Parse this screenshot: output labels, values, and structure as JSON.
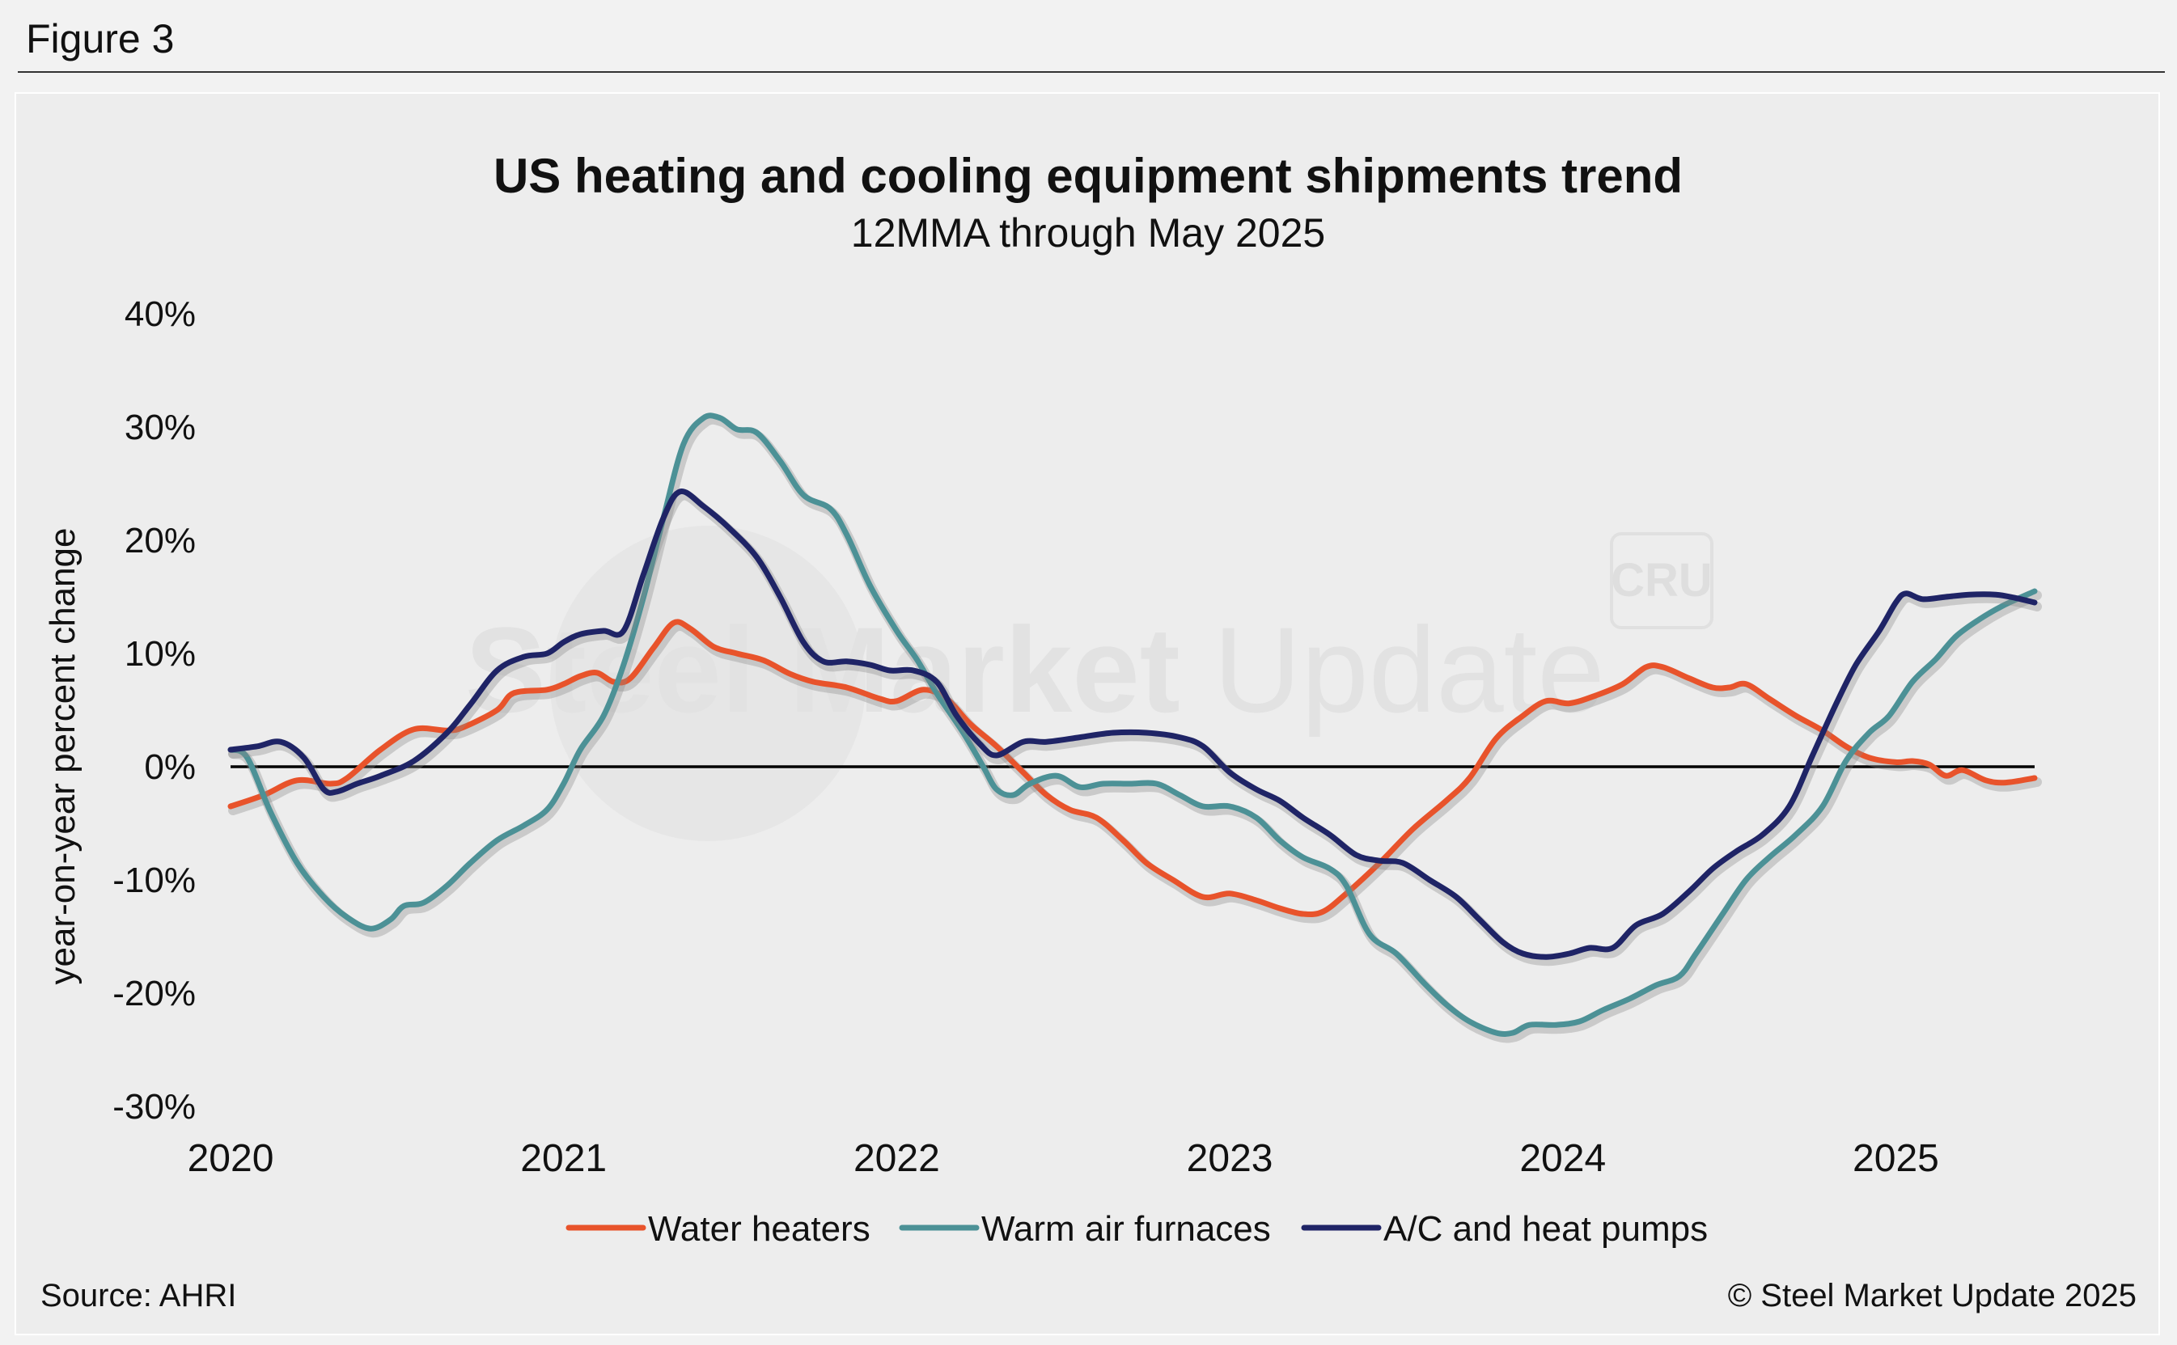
{
  "figure_label": "Figure 3",
  "footer": {
    "source": "Source: AHRI",
    "copyright": "© Steel Market Update 2025"
  },
  "watermark": {
    "text_bold": "Steel Market",
    "text_light": "Update",
    "badge": "CRU"
  },
  "colors": {
    "water_heaters": "#e8532b",
    "warm_air_furnaces": "#4c9196",
    "ac_heat_pumps": "#1f2466",
    "zero_line": "#000000",
    "background": "#ededed"
  },
  "chart_data": {
    "type": "line",
    "title": "US heating and cooling equipment shipments trend",
    "subtitle": "12MMA through May 2025",
    "xlabel": "",
    "ylabel": "year-on-year percent change",
    "ylim": [
      -30,
      40
    ],
    "xlim": [
      2020.0,
      2025.4167
    ],
    "yticks": [
      40,
      30,
      20,
      10,
      0,
      -10,
      -20,
      -30
    ],
    "ytick_labels": [
      "40%",
      "30%",
      "20%",
      "10%",
      "0%",
      "-10%",
      "-20%",
      "-30%"
    ],
    "xticks": [
      2020,
      2021,
      2022,
      2023,
      2024,
      2025
    ],
    "xtick_labels": [
      "2020",
      "2021",
      "2022",
      "2023",
      "2024",
      "2025"
    ],
    "grid": false,
    "legend_position": "bottom-center",
    "series": [
      {
        "name": "Water heaters",
        "color": "#e8532b",
        "points": [
          [
            2020.0,
            -3.5
          ],
          [
            2020.1,
            -2.5
          ],
          [
            2020.2,
            -1.2
          ],
          [
            2020.3,
            -1.5
          ],
          [
            2020.35,
            -1.0
          ],
          [
            2020.45,
            1.5
          ],
          [
            2020.55,
            3.3
          ],
          [
            2020.65,
            3.2
          ],
          [
            2020.7,
            3.5
          ],
          [
            2020.8,
            5.0
          ],
          [
            2020.85,
            6.5
          ],
          [
            2020.95,
            6.8
          ],
          [
            2021.0,
            7.3
          ],
          [
            2021.05,
            8.0
          ],
          [
            2021.1,
            8.3
          ],
          [
            2021.15,
            7.5
          ],
          [
            2021.2,
            7.8
          ],
          [
            2021.27,
            10.5
          ],
          [
            2021.33,
            12.7
          ],
          [
            2021.38,
            12.2
          ],
          [
            2021.45,
            10.6
          ],
          [
            2021.52,
            10.0
          ],
          [
            2021.6,
            9.4
          ],
          [
            2021.68,
            8.2
          ],
          [
            2021.75,
            7.5
          ],
          [
            2021.85,
            7.0
          ],
          [
            2021.95,
            6.0
          ],
          [
            2022.0,
            5.8
          ],
          [
            2022.08,
            6.8
          ],
          [
            2022.15,
            6.0
          ],
          [
            2022.22,
            3.8
          ],
          [
            2022.3,
            1.8
          ],
          [
            2022.38,
            -0.5
          ],
          [
            2022.45,
            -2.5
          ],
          [
            2022.52,
            -3.8
          ],
          [
            2022.6,
            -4.5
          ],
          [
            2022.68,
            -6.5
          ],
          [
            2022.75,
            -8.5
          ],
          [
            2022.83,
            -10.0
          ],
          [
            2022.92,
            -11.5
          ],
          [
            2023.0,
            -11.2
          ],
          [
            2023.08,
            -11.8
          ],
          [
            2023.15,
            -12.5
          ],
          [
            2023.22,
            -13.0
          ],
          [
            2023.28,
            -12.8
          ],
          [
            2023.35,
            -11.2
          ],
          [
            2023.45,
            -8.5
          ],
          [
            2023.55,
            -5.5
          ],
          [
            2023.65,
            -3.0
          ],
          [
            2023.72,
            -1.0
          ],
          [
            2023.8,
            2.5
          ],
          [
            2023.88,
            4.5
          ],
          [
            2023.95,
            5.8
          ],
          [
            2024.02,
            5.6
          ],
          [
            2024.1,
            6.3
          ],
          [
            2024.18,
            7.3
          ],
          [
            2024.25,
            8.8
          ],
          [
            2024.3,
            8.8
          ],
          [
            2024.38,
            7.8
          ],
          [
            2024.45,
            7.0
          ],
          [
            2024.5,
            7.0
          ],
          [
            2024.55,
            7.3
          ],
          [
            2024.62,
            6.0
          ],
          [
            2024.7,
            4.5
          ],
          [
            2024.78,
            3.2
          ],
          [
            2024.85,
            1.8
          ],
          [
            2024.92,
            0.8
          ],
          [
            2025.0,
            0.4
          ],
          [
            2025.05,
            0.5
          ],
          [
            2025.1,
            0.2
          ],
          [
            2025.15,
            -0.8
          ],
          [
            2025.2,
            -0.3
          ],
          [
            2025.27,
            -1.2
          ],
          [
            2025.33,
            -1.4
          ],
          [
            2025.4167,
            -1.0
          ]
        ]
      },
      {
        "name": "Warm air furnaces",
        "color": "#4c9196",
        "points": [
          [
            2020.0,
            1.5
          ],
          [
            2020.05,
            0.8
          ],
          [
            2020.12,
            -4.0
          ],
          [
            2020.2,
            -8.5
          ],
          [
            2020.28,
            -11.5
          ],
          [
            2020.35,
            -13.3
          ],
          [
            2020.42,
            -14.3
          ],
          [
            2020.48,
            -13.5
          ],
          [
            2020.52,
            -12.3
          ],
          [
            2020.58,
            -12.0
          ],
          [
            2020.65,
            -10.5
          ],
          [
            2020.72,
            -8.5
          ],
          [
            2020.8,
            -6.5
          ],
          [
            2020.88,
            -5.2
          ],
          [
            2020.95,
            -3.8
          ],
          [
            2021.0,
            -1.5
          ],
          [
            2021.05,
            1.5
          ],
          [
            2021.12,
            4.5
          ],
          [
            2021.18,
            9.0
          ],
          [
            2021.24,
            15.0
          ],
          [
            2021.3,
            22.0
          ],
          [
            2021.36,
            28.5
          ],
          [
            2021.42,
            30.8
          ],
          [
            2021.47,
            30.8
          ],
          [
            2021.52,
            29.8
          ],
          [
            2021.58,
            29.5
          ],
          [
            2021.65,
            27.0
          ],
          [
            2021.72,
            24.0
          ],
          [
            2021.8,
            22.8
          ],
          [
            2021.85,
            20.5
          ],
          [
            2021.92,
            16.0
          ],
          [
            2022.0,
            12.0
          ],
          [
            2022.06,
            9.5
          ],
          [
            2022.12,
            6.5
          ],
          [
            2022.2,
            3.0
          ],
          [
            2022.26,
            0.0
          ],
          [
            2022.3,
            -2.0
          ],
          [
            2022.35,
            -2.5
          ],
          [
            2022.4,
            -1.5
          ],
          [
            2022.48,
            -0.8
          ],
          [
            2022.55,
            -1.8
          ],
          [
            2022.62,
            -1.5
          ],
          [
            2022.7,
            -1.5
          ],
          [
            2022.78,
            -1.5
          ],
          [
            2022.85,
            -2.5
          ],
          [
            2022.92,
            -3.5
          ],
          [
            2023.0,
            -3.5
          ],
          [
            2023.08,
            -4.5
          ],
          [
            2023.15,
            -6.5
          ],
          [
            2023.22,
            -8.0
          ],
          [
            2023.3,
            -9.0
          ],
          [
            2023.35,
            -10.5
          ],
          [
            2023.42,
            -14.8
          ],
          [
            2023.5,
            -16.5
          ],
          [
            2023.58,
            -19.0
          ],
          [
            2023.65,
            -21.0
          ],
          [
            2023.72,
            -22.5
          ],
          [
            2023.8,
            -23.5
          ],
          [
            2023.85,
            -23.5
          ],
          [
            2023.9,
            -22.8
          ],
          [
            2023.98,
            -22.8
          ],
          [
            2024.05,
            -22.5
          ],
          [
            2024.12,
            -21.5
          ],
          [
            2024.2,
            -20.5
          ],
          [
            2024.28,
            -19.3
          ],
          [
            2024.35,
            -18.5
          ],
          [
            2024.4,
            -16.5
          ],
          [
            2024.48,
            -13.0
          ],
          [
            2024.55,
            -10.0
          ],
          [
            2024.62,
            -8.0
          ],
          [
            2024.7,
            -6.0
          ],
          [
            2024.78,
            -3.5
          ],
          [
            2024.85,
            0.5
          ],
          [
            2024.92,
            3.0
          ],
          [
            2024.98,
            4.5
          ],
          [
            2025.05,
            7.5
          ],
          [
            2025.12,
            9.5
          ],
          [
            2025.18,
            11.5
          ],
          [
            2025.25,
            13.0
          ],
          [
            2025.32,
            14.2
          ],
          [
            2025.4167,
            15.5
          ]
        ]
      },
      {
        "name": "A/C and heat pumps",
        "color": "#1f2466",
        "points": [
          [
            2020.0,
            1.5
          ],
          [
            2020.08,
            1.8
          ],
          [
            2020.15,
            2.2
          ],
          [
            2020.22,
            0.8
          ],
          [
            2020.28,
            -2.0
          ],
          [
            2020.32,
            -2.2
          ],
          [
            2020.38,
            -1.5
          ],
          [
            2020.45,
            -0.8
          ],
          [
            2020.55,
            0.5
          ],
          [
            2020.65,
            3.0
          ],
          [
            2020.72,
            5.5
          ],
          [
            2020.8,
            8.5
          ],
          [
            2020.88,
            9.7
          ],
          [
            2020.95,
            10.0
          ],
          [
            2021.0,
            11.0
          ],
          [
            2021.05,
            11.7
          ],
          [
            2021.12,
            12.0
          ],
          [
            2021.18,
            12.0
          ],
          [
            2021.24,
            17.0
          ],
          [
            2021.3,
            22.0
          ],
          [
            2021.35,
            24.3
          ],
          [
            2021.42,
            23.0
          ],
          [
            2021.5,
            21.0
          ],
          [
            2021.58,
            18.5
          ],
          [
            2021.65,
            15.0
          ],
          [
            2021.72,
            11.0
          ],
          [
            2021.78,
            9.3
          ],
          [
            2021.85,
            9.3
          ],
          [
            2021.92,
            9.0
          ],
          [
            2021.98,
            8.5
          ],
          [
            2022.05,
            8.5
          ],
          [
            2022.12,
            7.5
          ],
          [
            2022.18,
            4.5
          ],
          [
            2022.25,
            2.0
          ],
          [
            2022.3,
            1.0
          ],
          [
            2022.38,
            2.2
          ],
          [
            2022.45,
            2.2
          ],
          [
            2022.55,
            2.6
          ],
          [
            2022.65,
            3.0
          ],
          [
            2022.75,
            3.0
          ],
          [
            2022.85,
            2.6
          ],
          [
            2022.92,
            1.8
          ],
          [
            2023.0,
            -0.5
          ],
          [
            2023.08,
            -2.0
          ],
          [
            2023.15,
            -3.0
          ],
          [
            2023.22,
            -4.5
          ],
          [
            2023.3,
            -6.0
          ],
          [
            2023.38,
            -7.8
          ],
          [
            2023.45,
            -8.3
          ],
          [
            2023.52,
            -8.5
          ],
          [
            2023.6,
            -10.0
          ],
          [
            2023.68,
            -11.5
          ],
          [
            2023.75,
            -13.5
          ],
          [
            2023.82,
            -15.5
          ],
          [
            2023.88,
            -16.5
          ],
          [
            2023.95,
            -16.8
          ],
          [
            2024.02,
            -16.5
          ],
          [
            2024.08,
            -16.0
          ],
          [
            2024.15,
            -16.0
          ],
          [
            2024.22,
            -14.0
          ],
          [
            2024.3,
            -13.0
          ],
          [
            2024.38,
            -11.0
          ],
          [
            2024.45,
            -9.0
          ],
          [
            2024.52,
            -7.5
          ],
          [
            2024.6,
            -6.0
          ],
          [
            2024.68,
            -3.5
          ],
          [
            2024.75,
            1.0
          ],
          [
            2024.82,
            5.5
          ],
          [
            2024.88,
            9.0
          ],
          [
            2024.95,
            12.0
          ],
          [
            2025.0,
            14.5
          ],
          [
            2025.03,
            15.3
          ],
          [
            2025.08,
            14.8
          ],
          [
            2025.15,
            15.0
          ],
          [
            2025.22,
            15.2
          ],
          [
            2025.3,
            15.2
          ],
          [
            2025.36,
            14.9
          ],
          [
            2025.4167,
            14.5
          ]
        ]
      }
    ]
  }
}
